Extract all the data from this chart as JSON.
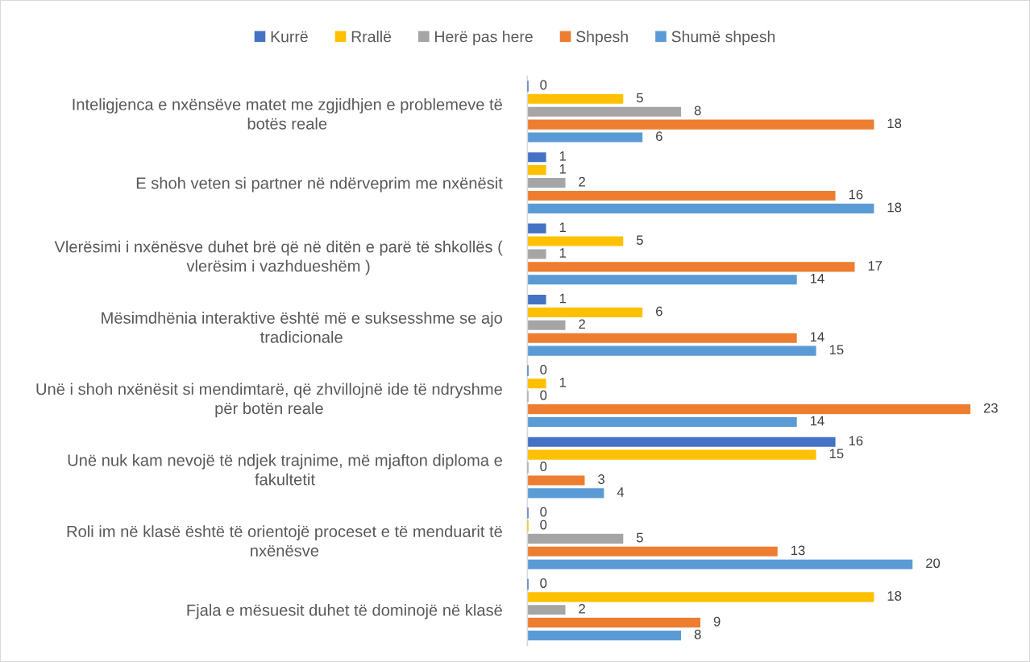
{
  "chart_data": {
    "type": "bar",
    "orientation": "horizontal",
    "legend": "top",
    "data_labels": true,
    "tick_labels": "y",
    "categories": [
      "Inteligjenca e nxënsëve matet me zgjidhjen e problemeve të botës reale",
      "E shoh veten si partner në ndërveprim me nxënësit",
      "Vlerësimi i nxënësve duhet brë që në ditën e parë të shkollës ( vlerësim i vazhdueshëm )",
      "Mësimdhënia interaktive është më e suksesshme se ajo tradicionale",
      "Unë i shoh nxënësit si mendimtarë, që zhvillojnë ide të ndryshme për botën reale",
      "Unë nuk kam nevojë të ndjek trajnime, më mjafton diploma e fakultetit",
      "Roli im në klasë është të orientojë proceset e të menduarit të nxënësve",
      "Fjala e mësuesit duhet të dominojë në klasë"
    ],
    "series": [
      {
        "name": "Kurrë",
        "color": "#4472c4",
        "values": [
          0,
          1,
          1,
          1,
          0,
          16,
          0,
          0
        ]
      },
      {
        "name": "Rrallë",
        "color": "#ffc000",
        "values": [
          5,
          1,
          5,
          6,
          1,
          15,
          0,
          18
        ]
      },
      {
        "name": "Herë pas here",
        "color": "#a5a5a5",
        "values": [
          8,
          2,
          1,
          2,
          0,
          0,
          5,
          2
        ]
      },
      {
        "name": "Shpesh",
        "color": "#ed7d31",
        "values": [
          18,
          16,
          17,
          14,
          23,
          3,
          13,
          9
        ]
      },
      {
        "name": "Shumë shpesh",
        "color": "#5b9bd5",
        "values": [
          6,
          18,
          14,
          15,
          14,
          4,
          20,
          8
        ]
      }
    ]
  }
}
